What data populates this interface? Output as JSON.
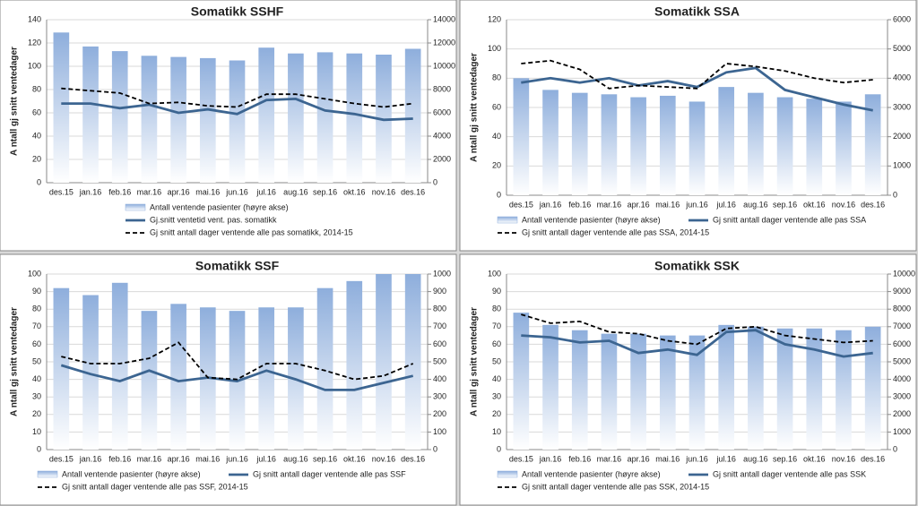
{
  "chart_data": [
    {
      "type": "bar-line",
      "title": "Somatikk SSHF",
      "y_label": "A ntall gj snitt ventedager",
      "categories": [
        "des.15",
        "jan.16",
        "feb.16",
        "mar.16",
        "apr.16",
        "mai.16",
        "jun.16",
        "jul.16",
        "aug.16",
        "sep.16",
        "okt.16",
        "nov.16",
        "des.16"
      ],
      "ylim": [
        0,
        140
      ],
      "yticks": [
        0,
        20,
        40,
        60,
        80,
        100,
        120,
        140
      ],
      "y2lim": [
        0,
        14000
      ],
      "y2ticks": [
        0,
        2000,
        4000,
        6000,
        8000,
        10000,
        12000,
        14000
      ],
      "series": [
        {
          "name": "Antall ventende pasienter (høyre akse)",
          "kind": "bar",
          "axis": "y2",
          "color": "#8eaedc",
          "values": [
            12900,
            11700,
            11300,
            10900,
            10800,
            10700,
            10500,
            11600,
            11100,
            11200,
            11100,
            11000,
            11500
          ]
        },
        {
          "name": "Gj.snitt ventetid vent. pas. somatikk",
          "kind": "line",
          "color": "#3c6591",
          "values": [
            68,
            68,
            64,
            67,
            60,
            63,
            59,
            71,
            72,
            62,
            59,
            54,
            55
          ]
        },
        {
          "name": "Gj snitt antall dager ventende alle pas somatikk, 2014-15",
          "kind": "dashed",
          "color": "#000000",
          "values": [
            81,
            79,
            77,
            68,
            69,
            66,
            65,
            76,
            76,
            72,
            68,
            65,
            68
          ]
        }
      ]
    },
    {
      "type": "bar-line",
      "title": "Somatikk SSA",
      "y_label": "A ntall gj snitt ventedager",
      "categories": [
        "des.15",
        "jan.16",
        "feb.16",
        "mar.16",
        "apr.16",
        "mai.16",
        "jun.16",
        "jul.16",
        "aug.16",
        "sep.16",
        "okt.16",
        "nov.16",
        "des.16"
      ],
      "ylim": [
        0,
        120
      ],
      "yticks": [
        0,
        20,
        40,
        60,
        80,
        100,
        120
      ],
      "y2lim": [
        0,
        6000
      ],
      "y2ticks": [
        0,
        1000,
        2000,
        3000,
        4000,
        5000,
        6000
      ],
      "series": [
        {
          "name": "Antall ventende pasienter (høyre akse)",
          "kind": "bar",
          "axis": "y2",
          "color": "#8eaedc",
          "values": [
            4000,
            3600,
            3500,
            3450,
            3350,
            3400,
            3200,
            3700,
            3500,
            3350,
            3300,
            3200,
            3450
          ]
        },
        {
          "name": "Gj snitt antall dager ventende alle pas SSA",
          "kind": "line",
          "color": "#3c6591",
          "values": [
            77,
            80,
            77,
            80,
            75,
            78,
            74,
            84,
            87,
            72,
            67,
            62,
            58
          ]
        },
        {
          "name": "Gj snitt antall dager ventende alle pas SSA, 2014-15",
          "kind": "dashed",
          "color": "#000000",
          "values": [
            90,
            92,
            86,
            73,
            75,
            74,
            73,
            90,
            88,
            85,
            80,
            77,
            79
          ]
        }
      ]
    },
    {
      "type": "bar-line",
      "title": "Somatikk SSF",
      "y_label": "A ntall gj snitt ventedager",
      "categories": [
        "des.15",
        "jan.16",
        "feb.16",
        "mar.16",
        "apr.16",
        "mai.16",
        "jun.16",
        "jul.16",
        "aug.16",
        "sep.16",
        "okt.16",
        "nov.16",
        "des.16"
      ],
      "ylim": [
        0,
        100
      ],
      "yticks": [
        0,
        10,
        20,
        30,
        40,
        50,
        60,
        70,
        80,
        90,
        100
      ],
      "y2lim": [
        0,
        1000
      ],
      "y2ticks": [
        0,
        100,
        200,
        300,
        400,
        500,
        600,
        700,
        800,
        900,
        1000
      ],
      "series": [
        {
          "name": "Antall ventende pasienter (høyre akse)",
          "kind": "bar",
          "axis": "y2",
          "color": "#8eaedc",
          "values": [
            920,
            880,
            950,
            790,
            830,
            810,
            790,
            810,
            810,
            920,
            960,
            1000,
            1000
          ]
        },
        {
          "name": "Gj snitt antall dager ventende alle pas SSF",
          "kind": "line",
          "color": "#3c6591",
          "values": [
            48,
            43,
            39,
            45,
            39,
            41,
            39,
            45,
            40,
            34,
            34,
            38,
            42
          ]
        },
        {
          "name": "Gj snitt antall dager ventende alle pas SSF, 2014-15",
          "kind": "dashed",
          "color": "#000000",
          "values": [
            53,
            49,
            49,
            52,
            61,
            41,
            40,
            49,
            49,
            45,
            40,
            42,
            49
          ]
        }
      ]
    },
    {
      "type": "bar-line",
      "title": "Somatikk SSK",
      "y_label": "A ntall gj snitt ventedager",
      "categories": [
        "des.15",
        "jan.16",
        "feb.16",
        "mar.16",
        "apr.16",
        "mai.16",
        "jun.16",
        "jul.16",
        "aug.16",
        "sep.16",
        "okt.16",
        "nov.16",
        "des.16"
      ],
      "ylim": [
        0,
        100
      ],
      "yticks": [
        0,
        10,
        20,
        30,
        40,
        50,
        60,
        70,
        80,
        90,
        100
      ],
      "y2lim": [
        0,
        10000
      ],
      "y2ticks": [
        0,
        1000,
        2000,
        3000,
        4000,
        5000,
        6000,
        7000,
        8000,
        9000,
        10000
      ],
      "series": [
        {
          "name": "Antall ventende pasienter (høyre akse)",
          "kind": "bar",
          "axis": "y2",
          "color": "#8eaedc",
          "values": [
            7800,
            7100,
            6800,
            6600,
            6600,
            6500,
            6500,
            7100,
            7000,
            6900,
            6900,
            6800,
            7000
          ]
        },
        {
          "name": "Gj snitt antall dager ventende alle pas SSK",
          "kind": "line",
          "color": "#3c6591",
          "values": [
            65,
            64,
            61,
            62,
            55,
            57,
            54,
            67,
            68,
            60,
            57,
            53,
            55
          ]
        },
        {
          "name": "Gj snitt antall dager ventende alle pas SSK, 2014-15",
          "kind": "dashed",
          "color": "#000000",
          "values": [
            77,
            72,
            73,
            67,
            66,
            62,
            60,
            69,
            70,
            65,
            63,
            61,
            62
          ]
        }
      ]
    }
  ]
}
